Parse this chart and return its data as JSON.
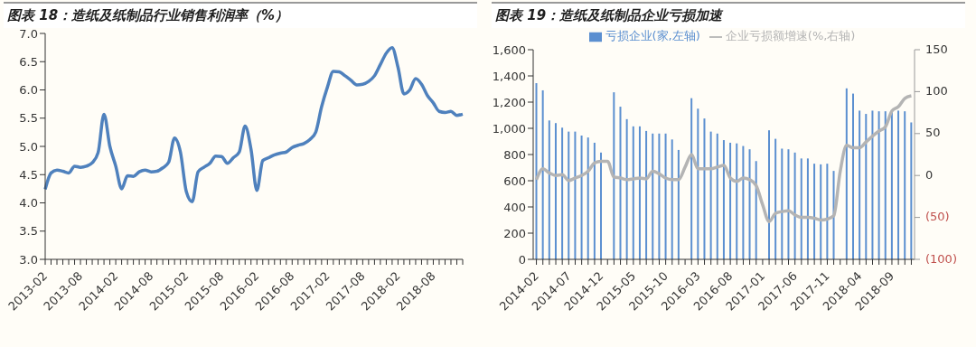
{
  "chart_data": [
    {
      "type": "line",
      "title": "图表 18：造纸及纸制品行业销售利润率（%）",
      "categories": [
        "2013-02",
        null,
        null,
        null,
        null,
        null,
        "2013-08",
        null,
        null,
        null,
        null,
        null,
        "2014-02",
        null,
        null,
        null,
        null,
        null,
        "2014-08",
        null,
        null,
        null,
        null,
        null,
        "2015-02",
        null,
        null,
        null,
        null,
        null,
        "2015-08",
        null,
        null,
        null,
        null,
        null,
        "2016-02",
        null,
        null,
        null,
        null,
        null,
        "2016-08",
        null,
        null,
        null,
        null,
        null,
        "2017-02",
        null,
        null,
        null,
        null,
        null,
        "2017-08",
        null,
        null,
        null,
        null,
        null,
        "2018-02",
        null,
        null,
        null,
        null,
        null,
        "2018-08",
        null,
        null,
        null,
        null,
        null
      ],
      "series": [
        {
          "color": "#4f81bd",
          "values": [
            4.24,
            4.53,
            4.58,
            4.56,
            4.53,
            4.65,
            4.63,
            4.65,
            4.71,
            4.89,
            5.57,
            5.0,
            4.65,
            4.25,
            4.48,
            4.47,
            4.55,
            4.58,
            4.55,
            4.56,
            4.62,
            4.72,
            5.15,
            4.9,
            4.2,
            4.02,
            4.55,
            4.63,
            4.7,
            4.83,
            4.82,
            4.7,
            4.8,
            4.9,
            5.36,
            4.95,
            4.22,
            4.75,
            4.8,
            4.85,
            4.88,
            4.9,
            4.98,
            5.02,
            5.05,
            5.12,
            5.25,
            5.7,
            6.05,
            6.33,
            6.32,
            6.25,
            6.17,
            6.09,
            6.1,
            6.15,
            6.25,
            6.45,
            6.65,
            6.75,
            6.4,
            5.93,
            6.0,
            6.2,
            6.1,
            5.9,
            5.77,
            5.62,
            5.6,
            5.62,
            5.55,
            5.57
          ]
        }
      ],
      "ylim": [
        3,
        7
      ],
      "yticks": [
        {
          "value": 3,
          "label": "3.0"
        },
        {
          "value": 3.5,
          "label": "3.5"
        },
        {
          "value": 4,
          "label": "4.0"
        },
        {
          "value": 4.5,
          "label": "4.5"
        },
        {
          "value": 5,
          "label": "5.0"
        },
        {
          "value": 5.5,
          "label": "5.5"
        },
        {
          "value": 6,
          "label": "6.0"
        },
        {
          "value": 6.5,
          "label": "6.5"
        },
        {
          "value": 7,
          "label": "7.0"
        }
      ],
      "grid": false,
      "legend": false,
      "marker": "none",
      "line_style": "solid"
    },
    {
      "type": "bar",
      "title": "图表 19：造纸及纸制品企业亏损加速",
      "categories": [
        "2014-02",
        null,
        null,
        null,
        null,
        "2014-07",
        null,
        null,
        null,
        null,
        "2014-12",
        null,
        null,
        null,
        null,
        "2015-05",
        null,
        null,
        null,
        null,
        "2015-10",
        null,
        null,
        null,
        null,
        "2016-03",
        null,
        null,
        null,
        null,
        "2016-08",
        null,
        null,
        null,
        null,
        "2017-01",
        null,
        null,
        null,
        null,
        "2017-06",
        null,
        null,
        null,
        null,
        "2017-11",
        null,
        null,
        null,
        null,
        "2018-04",
        null,
        null,
        null,
        null,
        "2018-09",
        null,
        null,
        null
      ],
      "series": [
        {
          "name": "亏损企业(家,左轴)",
          "type": "bar",
          "color": "#5b8fd0",
          "values": [
            1345,
            1290,
            1060,
            1040,
            1005,
            975,
            975,
            945,
            930,
            890,
            815,
            null,
            1275,
            1165,
            1070,
            1015,
            1015,
            980,
            960,
            960,
            960,
            915,
            835,
            null,
            1230,
            1150,
            1075,
            975,
            960,
            910,
            890,
            885,
            865,
            840,
            750,
            null,
            985,
            920,
            845,
            840,
            815,
            770,
            770,
            730,
            725,
            730,
            675,
            null,
            1305,
            1265,
            1135,
            1110,
            1135,
            1130,
            1130,
            1125,
            1135,
            1130,
            1045
          ]
        },
        {
          "name": "企业亏损额增速(%,右轴)",
          "type": "line",
          "axis": "y2",
          "color": "#b4b4b4",
          "values": [
            -5,
            8,
            3,
            0,
            1,
            -6,
            -3,
            0,
            5,
            15,
            17,
            17,
            -2,
            -3,
            -5,
            -4,
            -3,
            -4,
            5,
            2,
            -3,
            -5,
            -5,
            10,
            25,
            8,
            8,
            8,
            10,
            12,
            -3,
            -7,
            -3,
            -5,
            -12,
            -35,
            -55,
            -45,
            -43,
            -42,
            -47,
            -50,
            -50,
            -51,
            -53,
            -52,
            -48,
            5,
            36,
            33,
            33,
            40,
            47,
            53,
            58,
            77,
            82,
            92,
            95
          ]
        }
      ],
      "ylim": [
        0,
        1600
      ],
      "yticks": [
        0,
        200,
        400,
        600,
        800,
        {
          "value": 1000,
          "label": "1,000"
        },
        {
          "value": 1200,
          "label": "1,200"
        },
        {
          "value": 1400,
          "label": "1,400"
        },
        {
          "value": 1600,
          "label": "1,600"
        }
      ],
      "y2lim": [
        -100,
        150
      ],
      "y2ticks": [
        {
          "value": -100,
          "label": "(100)"
        },
        {
          "value": -50,
          "label": "(50)"
        },
        0,
        50,
        100,
        150
      ],
      "grid": false,
      "legend": "top",
      "marker": "none",
      "line_style": "solid"
    }
  ]
}
